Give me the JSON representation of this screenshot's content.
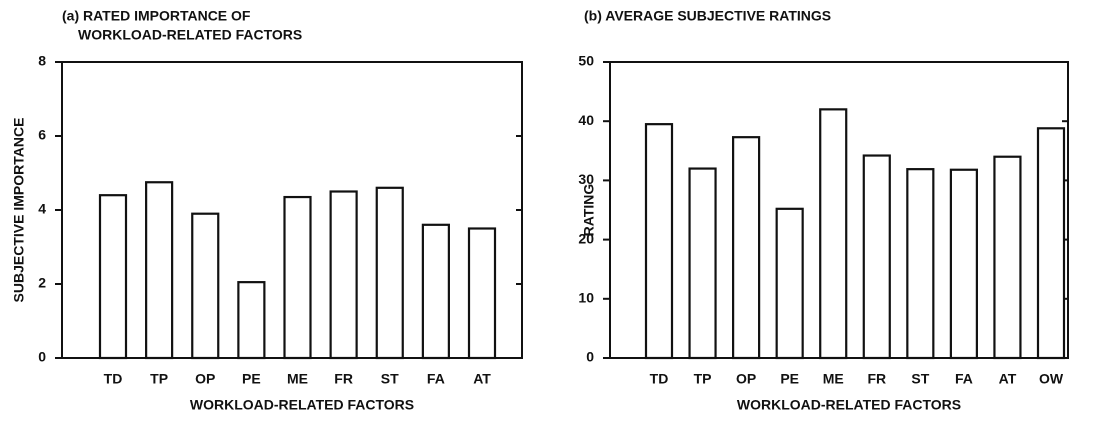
{
  "chart_data": [
    {
      "type": "bar",
      "title": [
        "(a) RATED IMPORTANCE OF",
        "WORKLOAD-RELATED FACTORS"
      ],
      "x_label": "WORKLOAD-RELATED FACTORS",
      "y_label": "SUBJECTIVE IMPORTANCE",
      "categories": [
        "TD",
        "TP",
        "OP",
        "PE",
        "ME",
        "FR",
        "ST",
        "FA",
        "AT"
      ],
      "values": [
        4.4,
        4.75,
        3.9,
        2.05,
        4.35,
        4.5,
        4.6,
        3.6,
        3.5
      ],
      "color": "#ffffff",
      "ylim": [
        0,
        8
      ],
      "yticks": [
        0,
        2,
        4,
        6,
        8
      ],
      "grid": false
    },
    {
      "type": "bar",
      "title": [
        "(b) AVERAGE SUBJECTIVE RATINGS"
      ],
      "x_label": "WORKLOAD-RELATED FACTORS",
      "y_label": "RATING",
      "categories": [
        "TD",
        "TP",
        "OP",
        "PE",
        "ME",
        "FR",
        "ST",
        "FA",
        "AT",
        "OW"
      ],
      "values": [
        39.5,
        32,
        37.3,
        25.2,
        42,
        34.2,
        31.9,
        31.8,
        34,
        38.8
      ],
      "color": "#ffffff",
      "ylim": [
        0,
        50
      ],
      "yticks": [
        0,
        10,
        20,
        30,
        40,
        50
      ],
      "grid": false
    }
  ]
}
